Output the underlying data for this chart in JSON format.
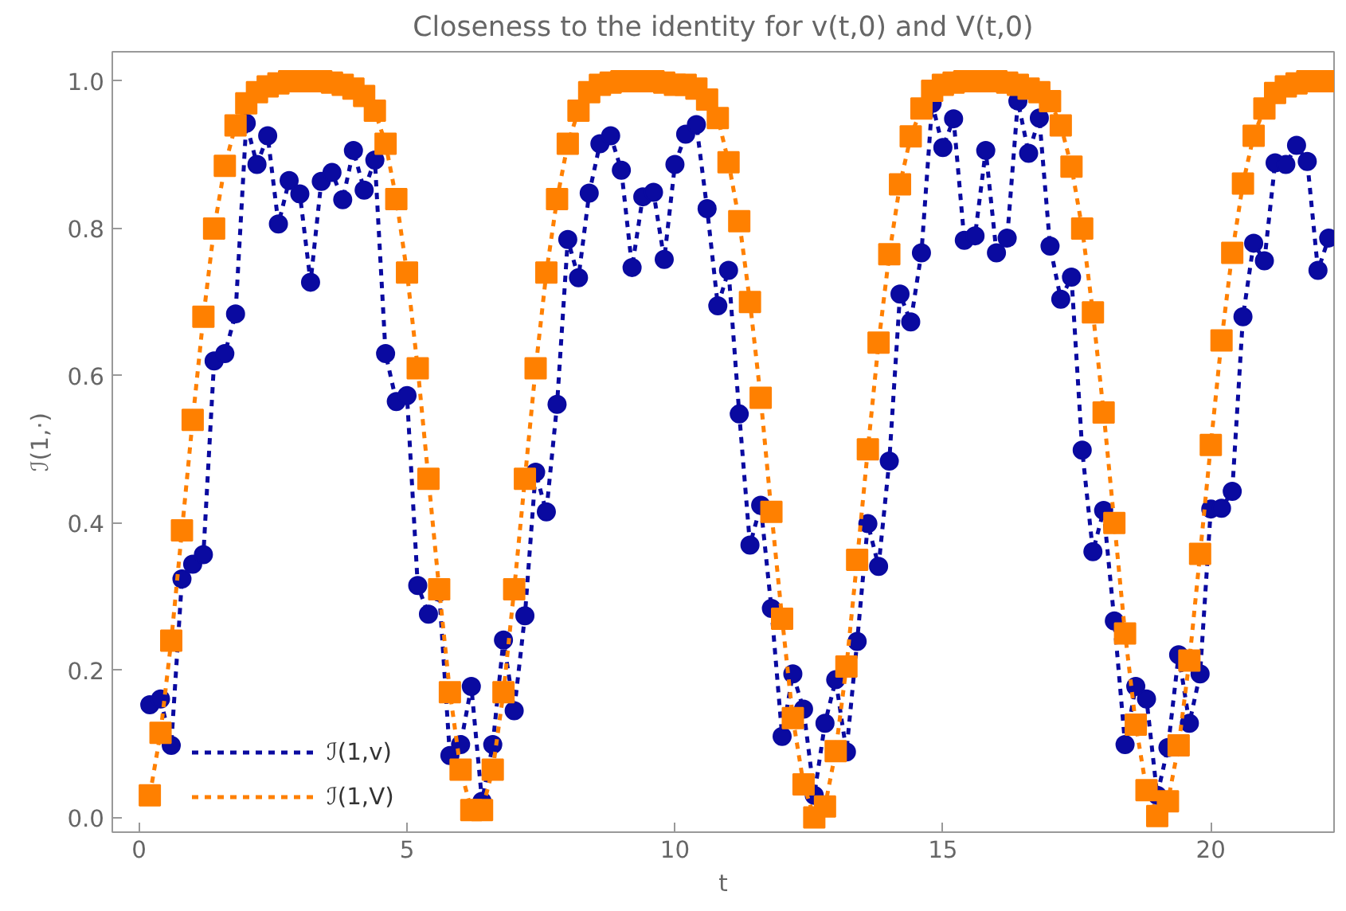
{
  "chart_data": {
    "type": "line",
    "title": "Closeness to the identity for v(t,0) and V(t,0)",
    "xlabel": "t",
    "ylabel": "ℐ(1,·)",
    "x": [
      0.2,
      0.4,
      0.6,
      0.8,
      1.0,
      1.2,
      1.4,
      1.6,
      1.8,
      2.0,
      2.2,
      2.4,
      2.6,
      2.8,
      3.0,
      3.2,
      3.4,
      3.6,
      3.8,
      4.0,
      4.2,
      4.4,
      4.6,
      4.8,
      5.0,
      5.2,
      5.4,
      5.6,
      5.8,
      6.0,
      6.2,
      6.4,
      6.6,
      6.8,
      7.0,
      7.2,
      7.4,
      7.6,
      7.8,
      8.0,
      8.2,
      8.4,
      8.6,
      8.8,
      9.0,
      9.2,
      9.4,
      9.6,
      9.8,
      10.0,
      10.2,
      10.4,
      10.6,
      10.8,
      11.0,
      11.2,
      11.4,
      11.6,
      11.8,
      12.0,
      12.2,
      12.4,
      12.6,
      12.8,
      13.0,
      13.2,
      13.4,
      13.6,
      13.8,
      14.0,
      14.2,
      14.4,
      14.6,
      14.8,
      15.0,
      15.2,
      15.4,
      15.6,
      15.8,
      16.0,
      16.2,
      16.4,
      16.6,
      16.8,
      17.0,
      17.2,
      17.4,
      17.6,
      17.8,
      18.0,
      18.2,
      18.4,
      18.6,
      18.8,
      19.0,
      19.2,
      19.4,
      19.6,
      19.8,
      20.0,
      20.2,
      20.4,
      20.6,
      20.8,
      21.0,
      21.2,
      21.4,
      21.6,
      21.8,
      22.0,
      22.2
    ],
    "series": [
      {
        "name": "ℐ(1,v)",
        "color": "#0a0aa0",
        "marker": "circle",
        "values": [
          0.153,
          0.161,
          0.098,
          0.324,
          0.344,
          0.357,
          0.62,
          0.63,
          0.684,
          0.943,
          0.887,
          0.926,
          0.806,
          0.865,
          0.847,
          0.727,
          0.864,
          0.876,
          0.839,
          0.906,
          0.852,
          0.893,
          0.63,
          0.565,
          0.573,
          0.315,
          0.276,
          0.306,
          0.084,
          0.099,
          0.178,
          0.022,
          0.099,
          0.241,
          0.145,
          0.274,
          0.469,
          0.415,
          0.561,
          0.785,
          0.733,
          0.848,
          0.915,
          0.926,
          0.879,
          0.747,
          0.843,
          0.849,
          0.758,
          0.887,
          0.928,
          0.941,
          0.827,
          0.695,
          0.743,
          0.548,
          0.37,
          0.424,
          0.284,
          0.11,
          0.195,
          0.147,
          0.03,
          0.128,
          0.187,
          0.089,
          0.239,
          0.399,
          0.341,
          0.484,
          0.711,
          0.673,
          0.767,
          0.97,
          0.91,
          0.949,
          0.784,
          0.79,
          0.906,
          0.767,
          0.787,
          0.973,
          0.902,
          0.95,
          0.776,
          0.704,
          0.734,
          0.499,
          0.361,
          0.417,
          0.267,
          0.099,
          0.178,
          0.161,
          0.03,
          0.095,
          0.221,
          0.128,
          0.195,
          0.419,
          0.42,
          0.443,
          0.68,
          0.78,
          0.756,
          0.889,
          0.887,
          0.913,
          0.891,
          0.743,
          0.787
        ]
      },
      {
        "name": "ℐ(1,V)",
        "color": "#ff8000",
        "marker": "square",
        "values": [
          0.03,
          0.115,
          0.24,
          0.39,
          0.54,
          0.68,
          0.8,
          0.885,
          0.94,
          0.97,
          0.985,
          0.993,
          0.997,
          1.0,
          1.0,
          1.0,
          1.0,
          0.998,
          0.995,
          0.99,
          0.98,
          0.96,
          0.915,
          0.84,
          0.74,
          0.61,
          0.46,
          0.31,
          0.17,
          0.065,
          0.01,
          0.01,
          0.065,
          0.17,
          0.31,
          0.46,
          0.61,
          0.74,
          0.84,
          0.915,
          0.96,
          0.985,
          0.995,
          0.998,
          1.0,
          1.0,
          1.0,
          1.0,
          0.998,
          0.995,
          0.995,
          0.99,
          0.975,
          0.95,
          0.89,
          0.81,
          0.7,
          0.57,
          0.415,
          0.27,
          0.135,
          0.045,
          0.0,
          0.015,
          0.09,
          0.205,
          0.35,
          0.5,
          0.645,
          0.765,
          0.86,
          0.925,
          0.963,
          0.987,
          0.995,
          0.998,
          1.0,
          1.0,
          1.0,
          1.0,
          0.998,
          0.995,
          0.99,
          0.985,
          0.973,
          0.94,
          0.884,
          0.8,
          0.686,
          0.55,
          0.4,
          0.25,
          0.126,
          0.037,
          0.002,
          0.022,
          0.098,
          0.213,
          0.358,
          0.506,
          0.648,
          0.767,
          0.861,
          0.926,
          0.963,
          0.984,
          0.993,
          0.997,
          1.0,
          1.0,
          1.0
        ]
      }
    ],
    "xlim": [
      -0.5,
      22.3
    ],
    "ylim": [
      -0.02,
      1.04
    ],
    "xticks": [
      0,
      5,
      10,
      15,
      20
    ],
    "yticks": [
      {
        "value": 0,
        "label": "0.0"
      },
      {
        "value": 0.2,
        "label": "0.2"
      },
      {
        "value": 0.4,
        "label": "0.4"
      },
      {
        "value": 0.6,
        "label": "0.6"
      },
      {
        "value": 0.8,
        "label": "0.8"
      },
      {
        "value": 1.0,
        "label": "1.0"
      }
    ],
    "line_style": "dashed",
    "legend": "bottom left",
    "grid": false
  }
}
